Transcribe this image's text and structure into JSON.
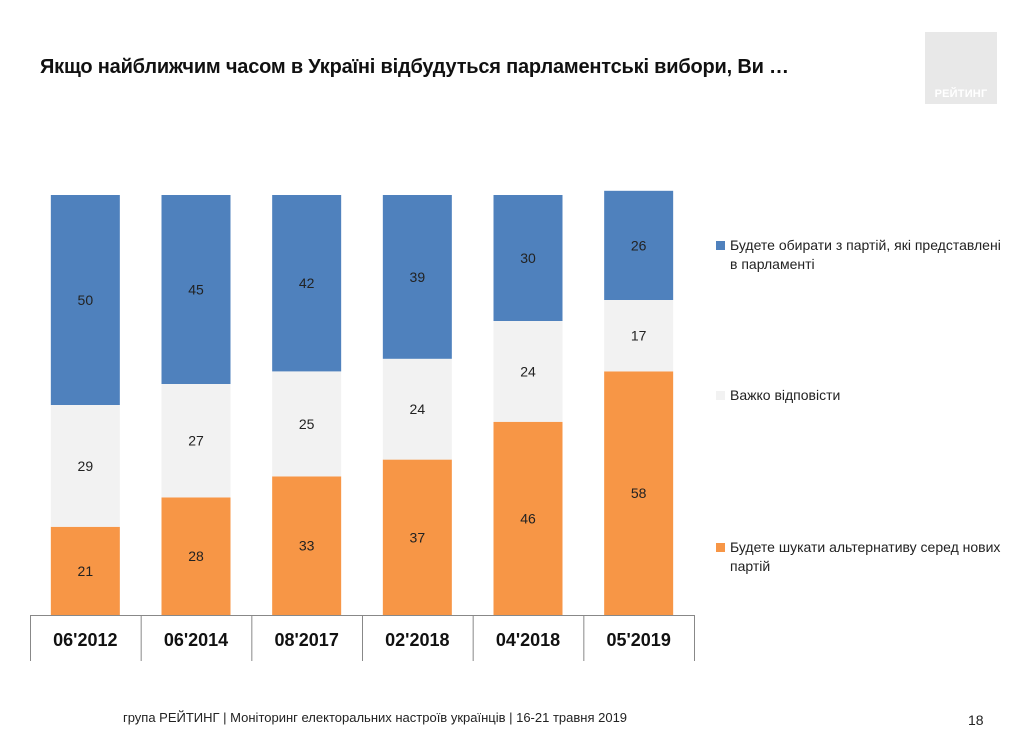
{
  "title": "Якщо найближчим часом в Україні відбудуться парламентські вибори, Ви …",
  "logo_text": "РЕЙТИНГ",
  "footer": "група РЕЙТИНГ | Моніторинг електоральних настроїв українців | 16-21 травня  2019",
  "page_number": "18",
  "colors": {
    "existing": "#4f81bd",
    "hard": "#f2f2f2",
    "new": "#f79646"
  },
  "chart_data": {
    "type": "bar",
    "stacked": true,
    "percent": true,
    "title": "Якщо найближчим часом в Україні відбудуться парламентські вибори, Ви …",
    "categories": [
      "06'2012",
      "06'2014",
      "08'2017",
      "02'2018",
      "04'2018",
      "05'2019"
    ],
    "series": [
      {
        "key": "new",
        "name": "Будете шукати альтернативу серед нових партій",
        "values": [
          21,
          28,
          33,
          37,
          46,
          58
        ]
      },
      {
        "key": "hard",
        "name": "Важко відповісти",
        "values": [
          29,
          27,
          25,
          24,
          24,
          17
        ]
      },
      {
        "key": "existing",
        "name": "Будете обирати з партій, які представлені в парламенті",
        "values": [
          50,
          45,
          42,
          39,
          30,
          26
        ]
      }
    ],
    "legend": [
      {
        "key": "existing",
        "label": "Будете обирати з партій, які представлені в парламенті"
      },
      {
        "key": "hard",
        "label": "Важко відповісти"
      },
      {
        "key": "new",
        "label": "Будете шукати альтернативу серед нових партій"
      }
    ],
    "legend_position": "right",
    "ylim": [
      0,
      100
    ]
  }
}
